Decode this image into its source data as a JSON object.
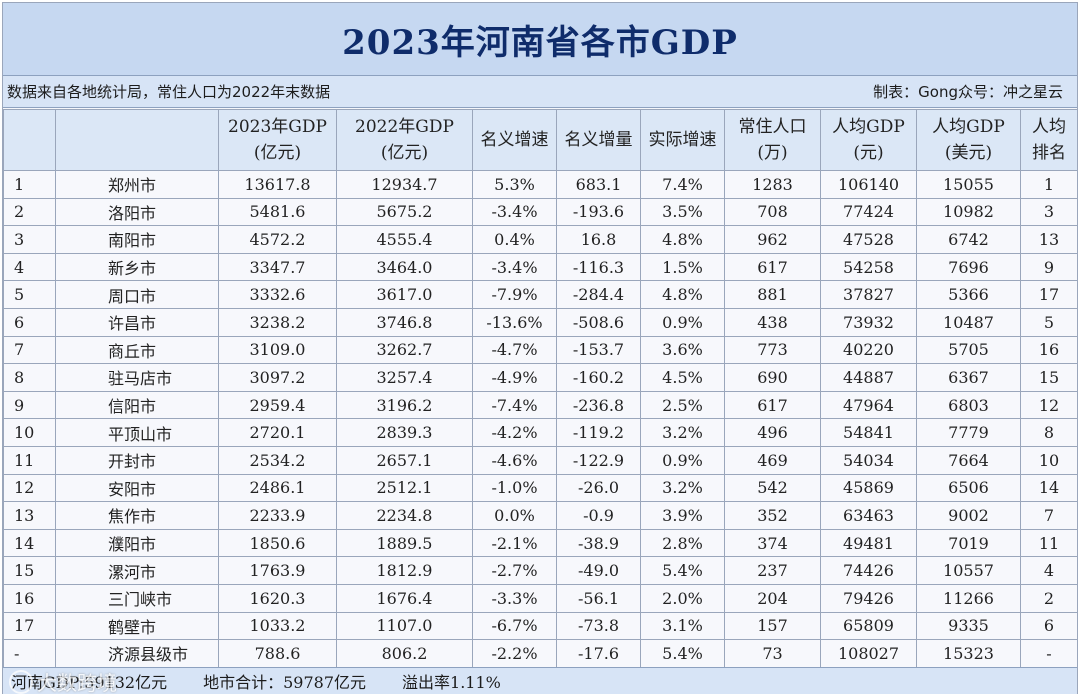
{
  "title": "2023年河南省各市GDP",
  "note_left": "数据来自各地统计局，常住人口为2022年末数据",
  "note_right": "制表：Gong众号：冲之星云",
  "headers": [
    [
      "",
      ""
    ],
    [
      "",
      ""
    ],
    [
      "2023年GDP",
      "(亿元)"
    ],
    [
      "2022年GDP",
      "(亿元)"
    ],
    [
      "名义增速",
      ""
    ],
    [
      "名义增量",
      ""
    ],
    [
      "实际增速",
      ""
    ],
    [
      "常住人口",
      "(万)"
    ],
    [
      "人均GDP",
      "(元)"
    ],
    [
      "人均GDP",
      "(美元)"
    ],
    [
      "人均",
      "排名"
    ]
  ],
  "rows": [
    [
      "1",
      "郑州市",
      "13617.8",
      "12934.7",
      "5.3%",
      "683.1",
      "7.4%",
      "1283",
      "106140",
      "15055",
      "1"
    ],
    [
      "2",
      "洛阳市",
      "5481.6",
      "5675.2",
      "-3.4%",
      "-193.6",
      "3.5%",
      "708",
      "77424",
      "10982",
      "3"
    ],
    [
      "3",
      "南阳市",
      "4572.2",
      "4555.4",
      "0.4%",
      "16.8",
      "4.8%",
      "962",
      "47528",
      "6742",
      "13"
    ],
    [
      "4",
      "新乡市",
      "3347.7",
      "3464.0",
      "-3.4%",
      "-116.3",
      "1.5%",
      "617",
      "54258",
      "7696",
      "9"
    ],
    [
      "5",
      "周口市",
      "3332.6",
      "3617.0",
      "-7.9%",
      "-284.4",
      "4.8%",
      "881",
      "37827",
      "5366",
      "17"
    ],
    [
      "6",
      "许昌市",
      "3238.2",
      "3746.8",
      "-13.6%",
      "-508.6",
      "0.9%",
      "438",
      "73932",
      "10487",
      "5"
    ],
    [
      "7",
      "商丘市",
      "3109.0",
      "3262.7",
      "-4.7%",
      "-153.7",
      "3.6%",
      "773",
      "40220",
      "5705",
      "16"
    ],
    [
      "8",
      "驻马店市",
      "3097.2",
      "3257.4",
      "-4.9%",
      "-160.2",
      "4.5%",
      "690",
      "44887",
      "6367",
      "15"
    ],
    [
      "9",
      "信阳市",
      "2959.4",
      "3196.2",
      "-7.4%",
      "-236.8",
      "2.5%",
      "617",
      "47964",
      "6803",
      "12"
    ],
    [
      "10",
      "平顶山市",
      "2720.1",
      "2839.3",
      "-4.2%",
      "-119.2",
      "3.2%",
      "496",
      "54841",
      "7779",
      "8"
    ],
    [
      "11",
      "开封市",
      "2534.2",
      "2657.1",
      "-4.6%",
      "-122.9",
      "0.9%",
      "469",
      "54034",
      "7664",
      "10"
    ],
    [
      "12",
      "安阳市",
      "2486.1",
      "2512.1",
      "-1.0%",
      "-26.0",
      "3.2%",
      "542",
      "45869",
      "6506",
      "14"
    ],
    [
      "13",
      "焦作市",
      "2233.9",
      "2234.8",
      "0.0%",
      "-0.9",
      "3.9%",
      "352",
      "63463",
      "9002",
      "7"
    ],
    [
      "14",
      "濮阳市",
      "1850.6",
      "1889.5",
      "-2.1%",
      "-38.9",
      "2.8%",
      "374",
      "49481",
      "7019",
      "11"
    ],
    [
      "15",
      "漯河市",
      "1763.9",
      "1812.9",
      "-2.7%",
      "-49.0",
      "5.4%",
      "237",
      "74426",
      "10557",
      "4"
    ],
    [
      "16",
      "三门峡市",
      "1620.3",
      "1676.4",
      "-3.3%",
      "-56.1",
      "2.0%",
      "204",
      "79426",
      "11266",
      "2"
    ],
    [
      "17",
      "鹤壁市",
      "1033.2",
      "1107.0",
      "-6.7%",
      "-73.8",
      "3.1%",
      "157",
      "65809",
      "9335",
      "6"
    ],
    [
      "-",
      "济源县级市",
      "788.6",
      "806.2",
      "-2.2%",
      "-17.6",
      "5.4%",
      "73",
      "108027",
      "15323",
      "-"
    ]
  ],
  "footer": {
    "province_total": "河南GDP:59132亿元",
    "city_total": "地市合计：59787亿元",
    "overflow_rate": "溢出率1.11%"
  },
  "watermark": "大数跨境"
}
